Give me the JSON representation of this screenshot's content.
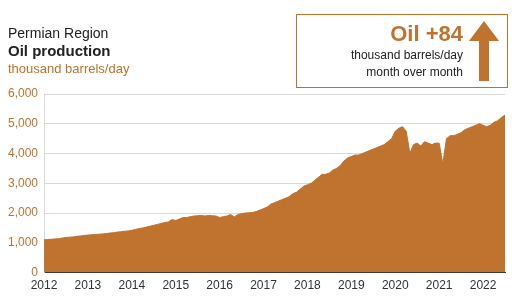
{
  "chart_data": {
    "type": "area",
    "subtitle": "Permian Region",
    "title": "Oil production",
    "y_label": "thousand barrels/day",
    "annotation": {
      "title": "Oil +84",
      "lines": [
        "thousand barrels/day",
        "month over month"
      ]
    },
    "color": "#c0722f",
    "grid": true,
    "categories": [
      "2012",
      null,
      null,
      null,
      null,
      null,
      null,
      null,
      null,
      null,
      null,
      null,
      "2013",
      null,
      null,
      null,
      null,
      null,
      null,
      null,
      null,
      null,
      null,
      null,
      "2014",
      null,
      null,
      null,
      null,
      null,
      null,
      null,
      null,
      null,
      null,
      null,
      "2015",
      null,
      null,
      null,
      null,
      null,
      null,
      null,
      null,
      null,
      null,
      null,
      "2016",
      null,
      null,
      null,
      null,
      null,
      null,
      null,
      null,
      null,
      null,
      null,
      "2017",
      null,
      null,
      null,
      null,
      null,
      null,
      null,
      null,
      null,
      null,
      null,
      "2018",
      null,
      null,
      null,
      null,
      null,
      null,
      null,
      null,
      null,
      null,
      null,
      "2019",
      null,
      null,
      null,
      null,
      null,
      null,
      null,
      null,
      null,
      null,
      null,
      "2020",
      null,
      null,
      null,
      null,
      null,
      null,
      null,
      null,
      null,
      null,
      null,
      "2021",
      null,
      null,
      null,
      null,
      null,
      null,
      null,
      null,
      null,
      null,
      null,
      "2022",
      null,
      null,
      null,
      null,
      null,
      null
    ],
    "values": [
      1100,
      1110,
      1120,
      1130,
      1140,
      1160,
      1180,
      1190,
      1200,
      1220,
      1230,
      1250,
      1260,
      1270,
      1280,
      1290,
      1300,
      1310,
      1330,
      1340,
      1360,
      1370,
      1390,
      1400,
      1420,
      1450,
      1480,
      1500,
      1530,
      1560,
      1590,
      1620,
      1650,
      1680,
      1700,
      1780,
      1750,
      1800,
      1850,
      1850,
      1880,
      1900,
      1910,
      1920,
      1900,
      1920,
      1910,
      1900,
      1850,
      1880,
      1900,
      1950,
      1870,
      1950,
      1980,
      2000,
      2010,
      2020,
      2050,
      2100,
      2150,
      2200,
      2300,
      2350,
      2400,
      2450,
      2500,
      2550,
      2650,
      2700,
      2800,
      2900,
      2950,
      3000,
      3100,
      3200,
      3300,
      3300,
      3350,
      3450,
      3500,
      3600,
      3750,
      3850,
      3900,
      3950,
      3950,
      4000,
      4050,
      4100,
      4150,
      4200,
      4250,
      4300,
      4400,
      4500,
      4750,
      4850,
      4900,
      4750,
      4000,
      4300,
      4350,
      4250,
      4400,
      4350,
      4300,
      4350,
      4350,
      3650,
      4500,
      4600,
      4600,
      4650,
      4700,
      4800,
      4850,
      4900,
      4950,
      5000,
      4950,
      4900,
      4950,
      5050,
      5100,
      5210,
      5294
    ],
    "ylim": [
      0,
      6000
    ],
    "yticks": [
      0,
      {
        "value": 1000,
        "label": "1,000"
      },
      {
        "value": 2000,
        "label": "2,000"
      },
      {
        "value": 3000,
        "label": "3,000"
      },
      {
        "value": 4000,
        "label": "4,000"
      },
      {
        "value": 5000,
        "label": "5,000"
      },
      {
        "value": 6000,
        "label": "6,000"
      }
    ]
  }
}
